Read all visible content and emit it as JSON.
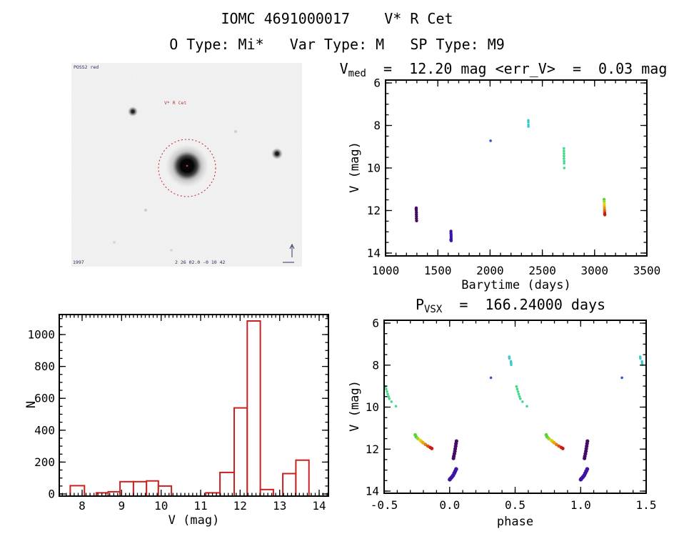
{
  "header": {
    "title": "IOMC 4691000017    V* R Cet",
    "subtitle": "O Type: Mi*   Var Type: M   SP Type: M9"
  },
  "finder": {
    "image_label": "POSS2 red",
    "target_label": "V* R Cet",
    "coords_label": "2 26 02.0  -0 10 42",
    "epoch_label": "1997",
    "compass_icon": "north-east-compass"
  },
  "colors": {
    "frame": "#000000",
    "histogram": "#cc2020",
    "darkviolet": "#470b63",
    "indigo": "#3d13a8",
    "blue": "#2e55cc",
    "cyan": "#3cc8d4",
    "springgreen": "#44d98c",
    "green": "#55d435",
    "yellow": "#ded51f",
    "orange": "#e59a14",
    "red": "#d01410"
  },
  "chart_data": [
    {
      "id": "lightcurve",
      "type": "scatter",
      "title": {
        "pre": "V",
        "sub": "med",
        "post": "  =  12.20 mag <err_V>  =  0.03 mag"
      },
      "xlabel": "Barytime (days)",
      "ylabel": "V (mag)",
      "xlim": [
        1000,
        3500
      ],
      "ylim": [
        14,
        6
      ],
      "grid": false,
      "xticks": [
        1000,
        1500,
        2000,
        2500,
        3000,
        3500
      ],
      "xtick_labels": [
        "1000",
        "1500",
        "2000",
        "2500",
        "3000",
        "3500"
      ],
      "yticks": [
        6,
        8,
        10,
        12,
        14
      ],
      "ytick_labels": [
        "6",
        "8",
        "10",
        "12",
        "14"
      ],
      "xstep": {
        "major": 500,
        "minor": 100
      },
      "ystep": {
        "major": 2,
        "minor": 0.5
      },
      "series": [
        {
          "name": "epoch-1300",
          "color": "#470b63",
          "size": 2.2,
          "points": [
            [
              1293,
              11.92
            ],
            [
              1294,
              11.88
            ],
            [
              1294,
              11.98
            ],
            [
              1295,
              12.08
            ],
            [
              1295,
              12.18
            ],
            [
              1296,
              12.28
            ],
            [
              1296,
              12.38
            ],
            [
              1297,
              12.48
            ]
          ]
        },
        {
          "name": "epoch-1630",
          "color": "#3d13a8",
          "size": 2.2,
          "points": [
            [
              1625,
              13.38
            ],
            [
              1626,
              12.97
            ],
            [
              1626,
              13.06
            ],
            [
              1627,
              13.15
            ],
            [
              1627,
              13.24
            ],
            [
              1628,
              13.33
            ],
            [
              1628,
              13.42
            ]
          ]
        },
        {
          "name": "epoch-2005",
          "color": "#2e55cc",
          "size": 1.8,
          "points": [
            [
              2005,
              8.72
            ]
          ]
        },
        {
          "name": "epoch-2366",
          "color": "#3cc8d4",
          "size": 1.8,
          "points": [
            [
              2366,
              7.76
            ],
            [
              2366,
              7.85
            ],
            [
              2367,
              7.97
            ],
            [
              2367,
              8.05
            ]
          ]
        },
        {
          "name": "epoch-2707",
          "color": "#44d98c",
          "size": 1.8,
          "points": [
            [
              2706,
              9.08
            ],
            [
              2706,
              9.2
            ],
            [
              2707,
              9.32
            ],
            [
              2707,
              9.44
            ],
            [
              2707,
              9.56
            ],
            [
              2708,
              9.68
            ],
            [
              2708,
              9.78
            ],
            [
              2710,
              10.0
            ]
          ]
        },
        {
          "name": "epoch-3095",
          "color": "#d01410",
          "size": 2.2,
          "points": [
            [
              3091,
              11.48,
              "#55d435"
            ],
            [
              3092,
              11.58,
              "#9ed62a"
            ],
            [
              3093,
              11.68,
              "#ded51f"
            ],
            [
              3093,
              11.78,
              "#e5c01a"
            ],
            [
              3094,
              11.88,
              "#e59a14"
            ],
            [
              3095,
              11.98,
              "#e07013"
            ],
            [
              3096,
              12.08,
              "#d84511"
            ],
            [
              3097,
              12.16,
              "#d01410"
            ],
            [
              3098,
              12.2,
              "#d01410"
            ]
          ]
        }
      ]
    },
    {
      "id": "histogram",
      "type": "bar",
      "xlabel": "V (mag)",
      "ylabel": "N",
      "xlim": [
        7.4,
        14.25
      ],
      "ylim": [
        0,
        1130
      ],
      "grid": false,
      "xticks": [
        8,
        9,
        10,
        11,
        12,
        13,
        14
      ],
      "xtick_labels": [
        "8",
        "9",
        "10",
        "11",
        "12",
        "13",
        "14"
      ],
      "yticks": [
        0,
        200,
        400,
        600,
        800,
        1000
      ],
      "ytick_labels": [
        "0",
        "200",
        "400",
        "600",
        "800",
        "1000"
      ],
      "xstep": {
        "major": 1,
        "minor": 0.1
      },
      "ystep": {
        "major": 200,
        "minor": 50
      },
      "bins": [
        [
          7.7,
          8.06,
          52
        ],
        [
          8.36,
          8.66,
          7
        ],
        [
          8.66,
          8.96,
          14
        ],
        [
          8.96,
          9.3,
          77
        ],
        [
          9.3,
          9.63,
          77
        ],
        [
          9.63,
          9.93,
          82
        ],
        [
          9.93,
          10.26,
          50
        ],
        [
          11.13,
          11.49,
          7
        ],
        [
          11.49,
          11.85,
          135
        ],
        [
          11.85,
          12.18,
          540
        ],
        [
          12.18,
          12.51,
          1085
        ],
        [
          12.51,
          12.84,
          28
        ],
        [
          13.08,
          13.41,
          128
        ],
        [
          13.41,
          13.74,
          212
        ]
      ]
    },
    {
      "id": "phase",
      "type": "scatter",
      "title": {
        "pre": "P",
        "sub": "VSX",
        "post": "  =  166.24000 days"
      },
      "xlabel": "phase",
      "ylabel": "V (mag)",
      "xlim": [
        -0.5,
        1.5
      ],
      "ylim": [
        14,
        6
      ],
      "grid": false,
      "period_days": 166.24,
      "xticks": [
        -0.5,
        0,
        0.5,
        1,
        1.5
      ],
      "xtick_labels": [
        "-0.5",
        "0.0",
        "0.5",
        "1.0",
        "1.5"
      ],
      "yticks": [
        6,
        8,
        10,
        12,
        14
      ],
      "ytick_labels": [
        "6",
        "8",
        "10",
        "12",
        "14"
      ],
      "xstep": {
        "major": 0.5,
        "minor": 0.1
      },
      "ystep": {
        "major": 2,
        "minor": 0.5
      },
      "series": [
        {
          "name": "fold-green",
          "color": "#44d98c",
          "size": 1.8,
          "points": [
            [
              -0.49,
              9.02
            ],
            [
              -0.484,
              9.14
            ],
            [
              -0.478,
              9.26
            ],
            [
              -0.472,
              9.38
            ],
            [
              -0.466,
              9.5
            ],
            [
              -0.46,
              9.6
            ],
            [
              -0.444,
              9.74
            ],
            [
              -0.41,
              9.96
            ],
            [
              0.51,
              9.02
            ],
            [
              0.516,
              9.14
            ],
            [
              0.522,
              9.26
            ],
            [
              0.528,
              9.38
            ],
            [
              0.534,
              9.5
            ],
            [
              0.54,
              9.6
            ],
            [
              0.556,
              9.74
            ],
            [
              0.59,
              9.96
            ]
          ]
        },
        {
          "name": "fold-cyan",
          "color": "#3cc8d4",
          "size": 1.8,
          "points": [
            [
              0.455,
              7.6
            ],
            [
              0.456,
              7.68
            ],
            [
              0.468,
              7.82
            ],
            [
              0.469,
              7.9
            ],
            [
              0.47,
              7.98
            ],
            [
              1.455,
              7.6
            ],
            [
              1.456,
              7.68
            ],
            [
              1.468,
              7.82
            ],
            [
              1.469,
              7.9
            ],
            [
              1.47,
              7.98
            ]
          ]
        },
        {
          "name": "fold-blue",
          "color": "#2e55cc",
          "size": 1.8,
          "points": [
            [
              0.315,
              8.6
            ],
            [
              1.315,
              8.6
            ]
          ]
        },
        {
          "name": "fold-gradient",
          "color": "#d01410",
          "size": 2.4,
          "points": [
            [
              -0.263,
              11.32,
              "#55d435"
            ],
            [
              -0.256,
              11.42,
              "#55d435"
            ],
            [
              -0.243,
              11.5,
              "#9ed62a"
            ],
            [
              -0.225,
              11.58,
              "#ded51f"
            ],
            [
              -0.214,
              11.64,
              "#e5c01a"
            ],
            [
              -0.203,
              11.7,
              "#e5a815"
            ],
            [
              -0.185,
              11.78,
              "#e27f13"
            ],
            [
              -0.166,
              11.86,
              "#db4f10"
            ],
            [
              -0.148,
              11.92,
              "#d0200e"
            ],
            [
              -0.136,
              11.97,
              "#cc150d"
            ],
            [
              0.737,
              11.32,
              "#55d435"
            ],
            [
              0.744,
              11.42,
              "#55d435"
            ],
            [
              0.757,
              11.5,
              "#9ed62a"
            ],
            [
              0.775,
              11.58,
              "#ded51f"
            ],
            [
              0.786,
              11.64,
              "#e5c01a"
            ],
            [
              0.797,
              11.7,
              "#e5a815"
            ],
            [
              0.815,
              11.78,
              "#e27f13"
            ],
            [
              0.834,
              11.86,
              "#db4f10"
            ],
            [
              0.852,
              11.92,
              "#d0200e"
            ],
            [
              0.864,
              11.97,
              "#cc150d"
            ]
          ]
        },
        {
          "name": "fold-darkviolet",
          "color": "#470b63",
          "size": 2.6,
          "points": [
            [
              0.052,
              11.62
            ],
            [
              0.049,
              11.74
            ],
            [
              0.046,
              11.86
            ],
            [
              0.043,
              11.98
            ],
            [
              0.04,
              12.1
            ],
            [
              0.036,
              12.22
            ],
            [
              0.032,
              12.34
            ],
            [
              0.029,
              12.44
            ],
            [
              1.052,
              11.62
            ],
            [
              1.049,
              11.74
            ],
            [
              1.046,
              11.86
            ],
            [
              1.043,
              11.98
            ],
            [
              1.04,
              12.1
            ],
            [
              1.036,
              12.22
            ],
            [
              1.032,
              12.34
            ],
            [
              1.029,
              12.44
            ]
          ]
        },
        {
          "name": "fold-indigo",
          "color": "#3d13a8",
          "size": 2.8,
          "points": [
            [
              0.05,
              12.95
            ],
            [
              0.043,
              13.05
            ],
            [
              0.035,
              13.15
            ],
            [
              0.027,
              13.25
            ],
            [
              0.017,
              13.33
            ],
            [
              0.007,
              13.4
            ],
            [
              0.001,
              13.45
            ],
            [
              1.05,
              12.95
            ],
            [
              1.043,
              13.05
            ],
            [
              1.035,
              13.15
            ],
            [
              1.027,
              13.25
            ],
            [
              1.017,
              13.33
            ],
            [
              1.007,
              13.4
            ],
            [
              1.001,
              13.45
            ]
          ]
        }
      ]
    }
  ]
}
